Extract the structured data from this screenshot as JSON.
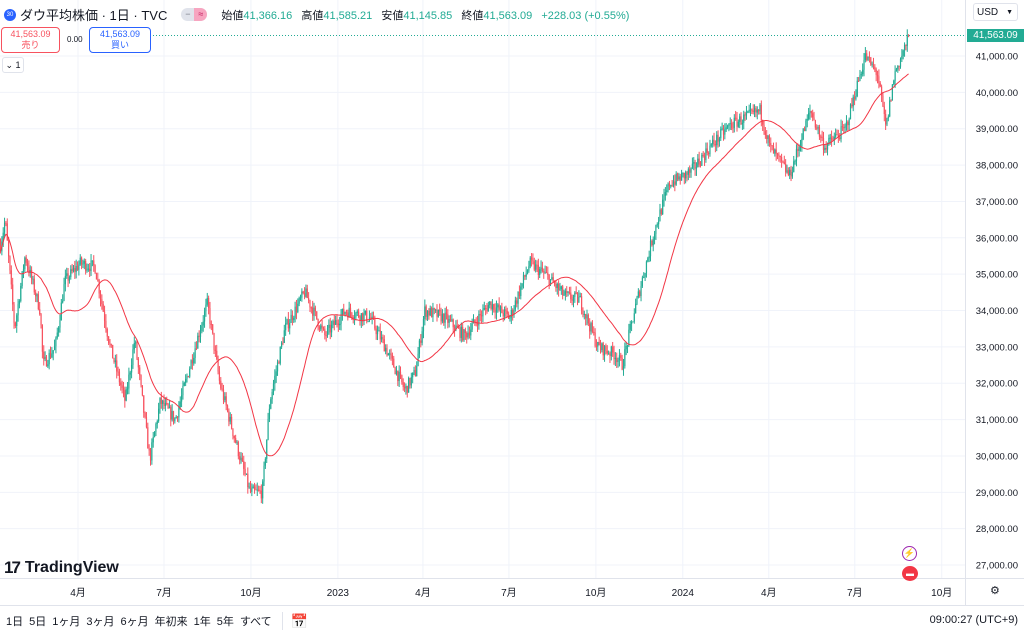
{
  "header": {
    "badge": "30",
    "title": "ダウ平均株価 · 1日 · TVC",
    "toggle": [
      "−",
      "≈"
    ],
    "open_label": "始値",
    "open": "41,366.16",
    "high_label": "高値",
    "high": "41,585.21",
    "low_label": "安値",
    "low": "41,145.85",
    "close_label": "終値",
    "close": "41,563.09",
    "change": "+228.03 (+0.55%)"
  },
  "trade": {
    "sell_price": "41,563.09",
    "sell_label": "売り",
    "spread": "0.00",
    "buy_price": "41,563.09",
    "buy_label": "買い"
  },
  "collapse_label": "⌄ 1",
  "currency": "USD",
  "last_price": "41,563.09",
  "logo": "TradingView",
  "colors": {
    "up": "#22ab94",
    "down": "#f7525f",
    "ma": "#f23645",
    "accent": "#2962ff"
  },
  "bottom": {
    "ranges": [
      "1日",
      "5日",
      "1ヶ月",
      "3ヶ月",
      "6ヶ月",
      "年初来",
      "1年",
      "5年",
      "すべて"
    ],
    "clock": "09:00:27 (UTC+9)"
  },
  "chart_data": {
    "type": "candlestick",
    "title": "ダウ平均株価 · 1日 · TVC",
    "x_unit": "days since 2022-01-01",
    "ylim": [
      26500,
      42000
    ],
    "y_ticks": [
      27000,
      28000,
      29000,
      30000,
      31000,
      32000,
      33000,
      34000,
      35000,
      36000,
      37000,
      38000,
      39000,
      40000,
      41000
    ],
    "x_ticks": [
      {
        "day": 90,
        "label": "4月"
      },
      {
        "day": 181,
        "label": "7月"
      },
      {
        "day": 273,
        "label": "10月"
      },
      {
        "day": 365,
        "label": "2023"
      },
      {
        "day": 455,
        "label": "4月"
      },
      {
        "day": 546,
        "label": "7月"
      },
      {
        "day": 638,
        "label": "10月"
      },
      {
        "day": 730,
        "label": "2024"
      },
      {
        "day": 821,
        "label": "4月"
      },
      {
        "day": 912,
        "label": "7月"
      },
      {
        "day": 1004,
        "label": "10月"
      }
    ],
    "close_path": [
      [
        8,
        35800
      ],
      [
        13,
        36500
      ],
      [
        23,
        33500
      ],
      [
        34,
        35500
      ],
      [
        50,
        34000
      ],
      [
        53,
        32500
      ],
      [
        66,
        33000
      ],
      [
        76,
        34800
      ],
      [
        92,
        35300
      ],
      [
        108,
        35200
      ],
      [
        124,
        33000
      ],
      [
        140,
        31500
      ],
      [
        150,
        33200
      ],
      [
        166,
        29900
      ],
      [
        177,
        31500
      ],
      [
        193,
        31000
      ],
      [
        214,
        33000
      ],
      [
        227,
        34200
      ],
      [
        240,
        32000
      ],
      [
        261,
        30000
      ],
      [
        272,
        29000
      ],
      [
        285,
        29000
      ],
      [
        293,
        31500
      ],
      [
        309,
        33500
      ],
      [
        330,
        34500
      ],
      [
        351,
        33300
      ],
      [
        373,
        34000
      ],
      [
        399,
        33800
      ],
      [
        415,
        33000
      ],
      [
        436,
        31800
      ],
      [
        447,
        32300
      ],
      [
        457,
        34000
      ],
      [
        478,
        33800
      ],
      [
        499,
        33300
      ],
      [
        526,
        34200
      ],
      [
        547,
        33800
      ],
      [
        568,
        35300
      ],
      [
        584,
        35000
      ],
      [
        605,
        34400
      ],
      [
        621,
        34300
      ],
      [
        640,
        33000
      ],
      [
        658,
        32800
      ],
      [
        666,
        32500
      ],
      [
        679,
        34000
      ],
      [
        700,
        36200
      ],
      [
        716,
        37500
      ],
      [
        738,
        37800
      ],
      [
        759,
        38500
      ],
      [
        780,
        39100
      ],
      [
        812,
        39500
      ],
      [
        822,
        38500
      ],
      [
        843,
        37700
      ],
      [
        865,
        39500
      ],
      [
        880,
        38500
      ],
      [
        902,
        39000
      ],
      [
        923,
        41000
      ],
      [
        936,
        40500
      ],
      [
        945,
        39000
      ],
      [
        954,
        40500
      ],
      [
        970,
        41563.09
      ]
    ],
    "moving_average": "50-day",
    "last": 41563.09
  }
}
